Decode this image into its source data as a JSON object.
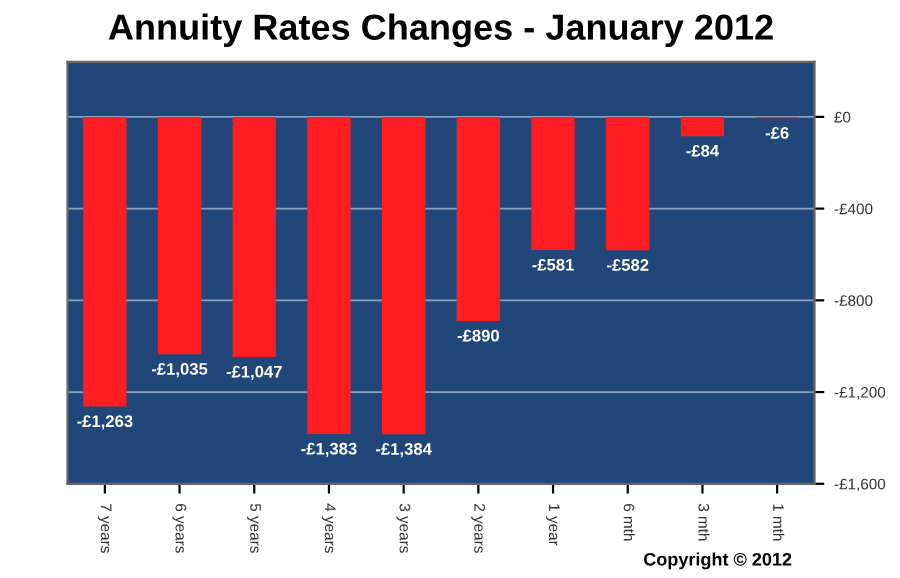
{
  "chart_data": {
    "type": "bar",
    "title": "Annuity Rates Changes - January 2012",
    "categories": [
      "7 years",
      "6 years",
      "5 years",
      "4 years",
      "3 years",
      "2 years",
      "1 year",
      "6 mth",
      "3 mth",
      "1 mth"
    ],
    "values": [
      -1263,
      -1035,
      -1047,
      -1383,
      -1384,
      -890,
      -581,
      -582,
      -84,
      -6
    ],
    "value_labels": [
      "-£1,263",
      "-£1,035",
      "-£1,047",
      "-£1,383",
      "-£1,384",
      "-£890",
      "-£581",
      "-£582",
      "-£84",
      "-£6"
    ],
    "color": "#fe1d22",
    "ylim": [
      -1600,
      240
    ],
    "yticks": [
      {
        "value": 0,
        "label": "£0"
      },
      {
        "value": -400,
        "label": "-£400"
      },
      {
        "value": -800,
        "label": "-£800"
      },
      {
        "value": -1200,
        "label": "-£1,200"
      },
      {
        "value": -1600,
        "label": "-£1,600"
      }
    ],
    "grid": "y",
    "annotations": [
      "Copyright © 2012"
    ]
  }
}
